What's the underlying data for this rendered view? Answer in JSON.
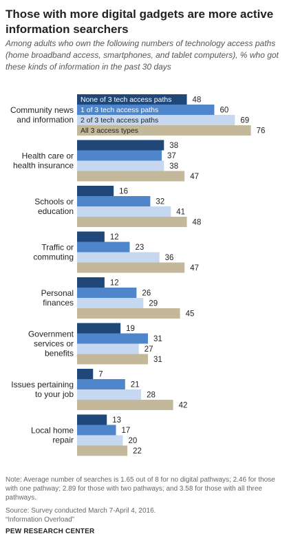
{
  "title": "Those with more digital gadgets are more active information searchers",
  "subtitle": "Among adults who own the following numbers of technology access paths (home broadband access, smartphones, and tablet computers), % who got these kinds of information in the past 30 days",
  "note": "Note: Average number of searches is 1.65 out of 8 for no digital pathways; 2.46 for those with one pathway; 2.89 for those with two pathways; and 3.58 for those with all three pathways.",
  "source": "Source: Survey conducted March 7-April 4, 2016.",
  "report": "“Information Overload”",
  "brand": "PEW RESEARCH CENTER",
  "colors": {
    "none": "#1f4777",
    "one": "#4f86cb",
    "two": "#c6d8ef",
    "all": "#c4b89b"
  },
  "chart_data": {
    "type": "bar",
    "orientation": "horizontal",
    "categories": [
      "Community news and information",
      "Health care or health insurance",
      "Schools or education",
      "Traffic or commuting",
      "Personal finances",
      "Government services or benefits",
      "Issues pertaining to your job",
      "Local home repair"
    ],
    "category_lines": [
      [
        "Community news",
        "and information"
      ],
      [
        "Health care or",
        "health insurance"
      ],
      [
        "Schools or",
        "education"
      ],
      [
        "Traffic or",
        "commuting"
      ],
      [
        "Personal",
        "finances"
      ],
      [
        "Government",
        "services or",
        "benefits"
      ],
      [
        "Issues pertaining",
        "to your job"
      ],
      [
        "Local home",
        "repair"
      ]
    ],
    "series": [
      {
        "name": "None of 3 tech access paths",
        "color_key": "none",
        "values": [
          48,
          38,
          16,
          12,
          12,
          19,
          7,
          13
        ]
      },
      {
        "name": "1 of 3 tech access paths",
        "color_key": "one",
        "values": [
          60,
          37,
          32,
          23,
          26,
          31,
          21,
          17
        ]
      },
      {
        "name": "2 of 3 tech access paths",
        "color_key": "two",
        "values": [
          69,
          38,
          41,
          36,
          29,
          27,
          28,
          20
        ]
      },
      {
        "name": "All 3 access types",
        "color_key": "all",
        "values": [
          76,
          47,
          48,
          47,
          45,
          31,
          42,
          22
        ]
      }
    ],
    "xlim": [
      0,
      80
    ],
    "legend": "inside-bars"
  }
}
